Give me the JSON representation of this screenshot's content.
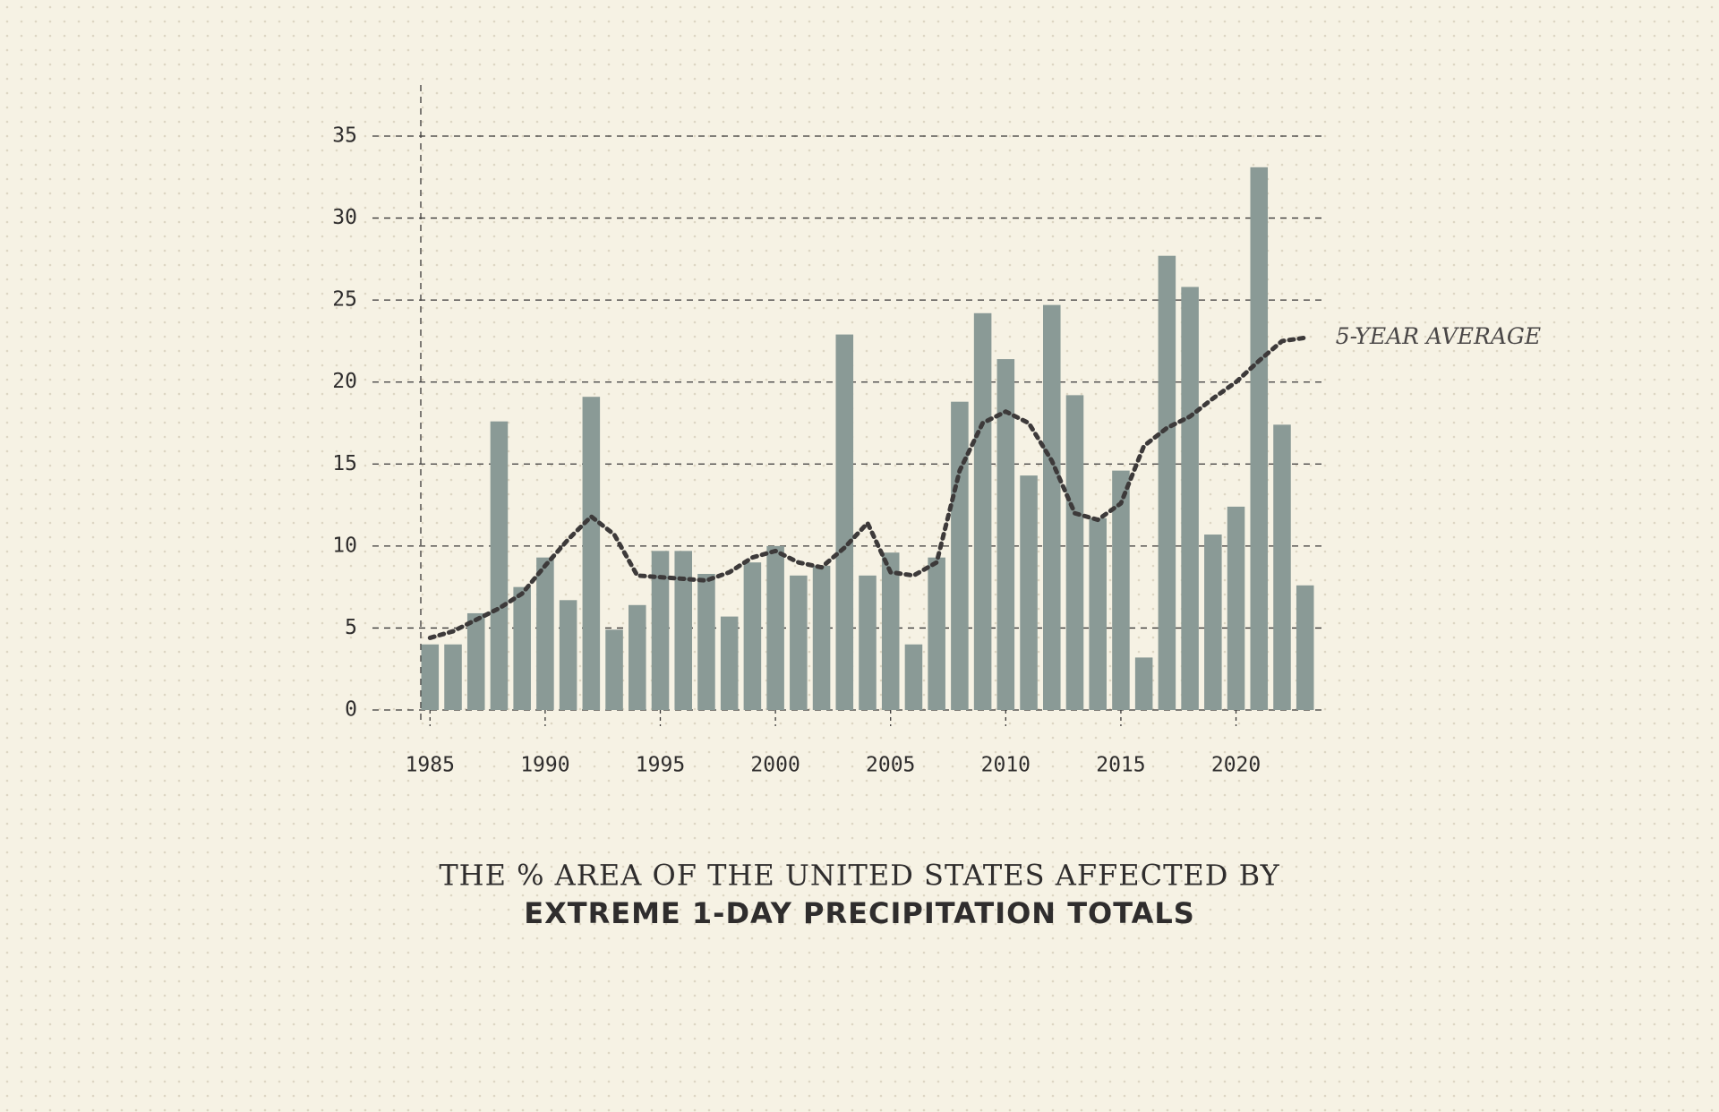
{
  "chart_data": {
    "type": "bar",
    "title": "THE % AREA OF THE UNITED STATES AFFECTED BY",
    "subtitle": "EXTREME 1-DAY PRECIPITATION TOTALS",
    "x": [
      1985,
      1986,
      1987,
      1988,
      1989,
      1990,
      1991,
      1992,
      1993,
      1994,
      1995,
      1996,
      1997,
      1998,
      1999,
      2000,
      2001,
      2002,
      2003,
      2004,
      2005,
      2006,
      2007,
      2008,
      2009,
      2010,
      2011,
      2012,
      2013,
      2014,
      2015,
      2016,
      2017,
      2018,
      2019,
      2020,
      2021,
      2022,
      2023
    ],
    "values": [
      4.0,
      4.0,
      5.9,
      17.6,
      7.5,
      9.3,
      6.7,
      19.1,
      4.9,
      6.4,
      9.7,
      9.7,
      8.3,
      5.7,
      9.0,
      10.0,
      8.2,
      8.8,
      22.9,
      8.2,
      9.6,
      4.0,
      9.3,
      18.8,
      24.2,
      21.4,
      14.3,
      24.7,
      19.2,
      11.7,
      14.6,
      3.2,
      27.7,
      25.8,
      10.7,
      12.4,
      33.1,
      17.4,
      7.6
    ],
    "color": "#8a9a96",
    "series": [
      {
        "name": "5-YEAR AVERAGE",
        "color": "#3d3a3a",
        "values": [
          4.4,
          4.8,
          5.5,
          6.2,
          7.1,
          8.8,
          10.4,
          11.8,
          10.7,
          8.2,
          8.1,
          8.0,
          7.9,
          8.4,
          9.3,
          9.7,
          9.0,
          8.7,
          9.9,
          11.4,
          8.4,
          8.2,
          9.0,
          14.6,
          17.5,
          18.2,
          17.5,
          15.2,
          12.0,
          11.6,
          12.6,
          16.1,
          17.2,
          17.9,
          19.0,
          20.0,
          21.3,
          22.5,
          22.7
        ]
      }
    ],
    "xlim": [
      1984.6,
      2023.4
    ],
    "xticks": [
      1985,
      1990,
      1995,
      2000,
      2005,
      2010,
      2015,
      2020
    ],
    "ylim": [
      0,
      35
    ],
    "yticks": [
      0,
      5,
      10,
      15,
      20,
      25,
      30,
      35
    ],
    "grid": true
  }
}
